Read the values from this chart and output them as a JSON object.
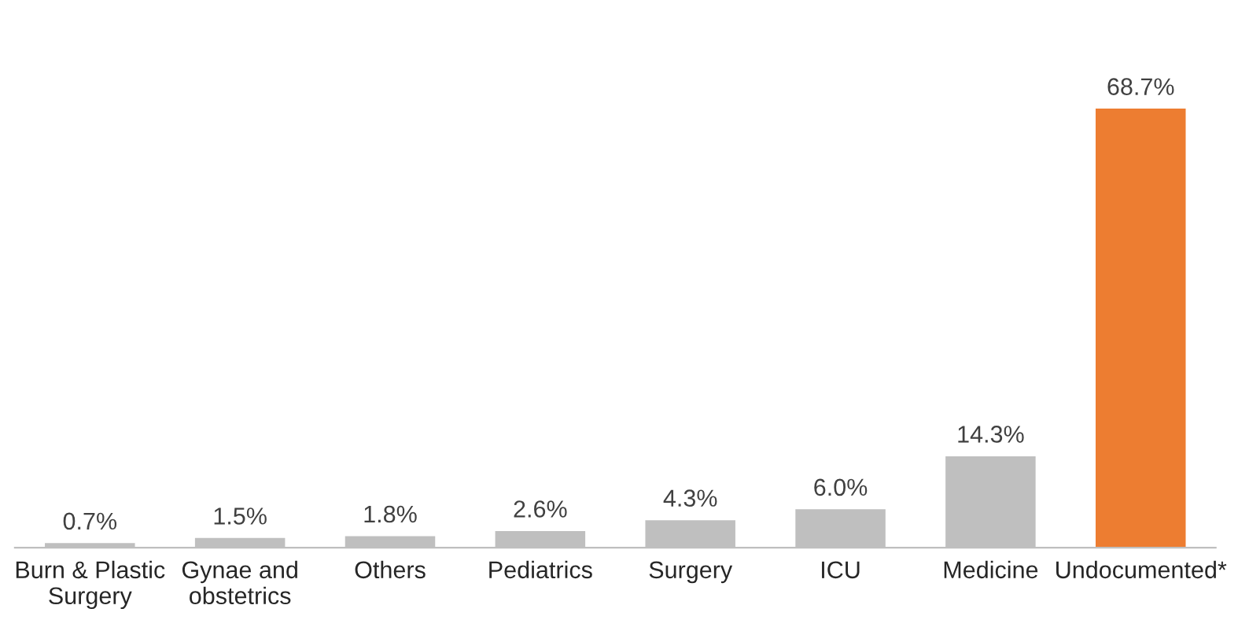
{
  "chart_data": {
    "type": "bar",
    "categories": [
      "Burn & Plastic\nSurgery",
      "Gynae and\nobstetrics",
      "Others",
      "Pediatrics",
      "Surgery",
      "ICU",
      "Medicine",
      "Undocumented*"
    ],
    "values": [
      0.7,
      1.5,
      1.8,
      2.6,
      4.3,
      6.0,
      14.3,
      68.7
    ],
    "colors": [
      "#bfbfbf",
      "#bfbfbf",
      "#bfbfbf",
      "#bfbfbf",
      "#bfbfbf",
      "#bfbfbf",
      "#bfbfbf",
      "#ed7d31"
    ],
    "value_labels": [
      "0.7%",
      "1.5%",
      "1.8%",
      "2.6%",
      "4.3%",
      "6.0%",
      "14.3%",
      "68.7%"
    ],
    "grid": false
  }
}
